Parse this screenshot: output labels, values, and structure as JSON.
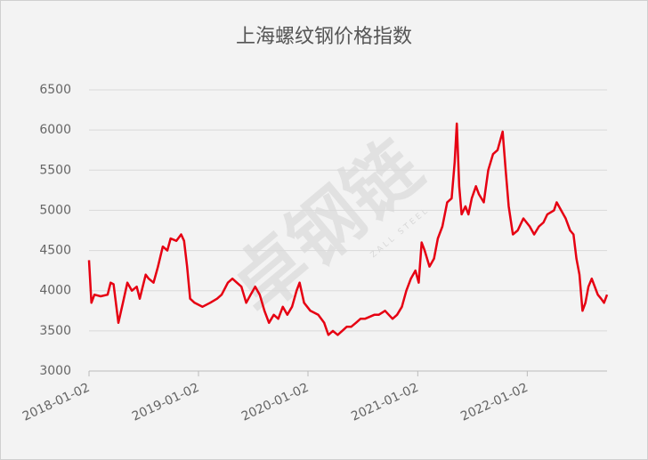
{
  "chart_data": {
    "type": "line",
    "title": "上海螺纹钢价格指数",
    "watermark": "卓钢链",
    "watermark_sub": "ZALL STEEL",
    "x": [
      "2018-01-02",
      "2018-01-10",
      "2018-01-20",
      "2018-02-10",
      "2018-03-05",
      "2018-03-15",
      "2018-03-25",
      "2018-04-10",
      "2018-04-25",
      "2018-05-10",
      "2018-05-25",
      "2018-06-10",
      "2018-06-20",
      "2018-07-10",
      "2018-07-20",
      "2018-08-05",
      "2018-08-20",
      "2018-09-05",
      "2018-09-20",
      "2018-10-01",
      "2018-10-20",
      "2018-11-05",
      "2018-11-15",
      "2018-11-25",
      "2018-12-05",
      "2018-12-20",
      "2019-01-15",
      "2019-02-10",
      "2019-03-05",
      "2019-03-20",
      "2019-04-10",
      "2019-04-25",
      "2019-05-10",
      "2019-05-25",
      "2019-06-10",
      "2019-06-25",
      "2019-07-10",
      "2019-07-25",
      "2019-08-10",
      "2019-08-25",
      "2019-09-10",
      "2019-09-25",
      "2019-10-10",
      "2019-10-25",
      "2019-11-10",
      "2019-11-25",
      "2019-12-05",
      "2019-12-20",
      "2020-01-10",
      "2020-02-05",
      "2020-02-25",
      "2020-03-10",
      "2020-03-25",
      "2020-04-10",
      "2020-04-25",
      "2020-05-10",
      "2020-05-25",
      "2020-06-10",
      "2020-06-25",
      "2020-07-10",
      "2020-08-10",
      "2020-08-25",
      "2020-09-15",
      "2020-10-10",
      "2020-10-25",
      "2020-11-10",
      "2020-11-25",
      "2020-12-10",
      "2020-12-25",
      "2021-01-05",
      "2021-01-15",
      "2021-01-25",
      "2021-02-10",
      "2021-02-25",
      "2021-03-10",
      "2021-03-25",
      "2021-04-10",
      "2021-04-25",
      "2021-05-05",
      "2021-05-12",
      "2021-05-20",
      "2021-05-28",
      "2021-06-10",
      "2021-06-20",
      "2021-07-01",
      "2021-07-15",
      "2021-07-25",
      "2021-08-10",
      "2021-08-25",
      "2021-09-10",
      "2021-09-25",
      "2021-10-12",
      "2021-10-22",
      "2021-11-01",
      "2021-11-15",
      "2021-12-01",
      "2021-12-20",
      "2022-01-10",
      "2022-01-25",
      "2022-02-10",
      "2022-02-25",
      "2022-03-10",
      "2022-04-01",
      "2022-04-10",
      "2022-04-25",
      "2022-05-10",
      "2022-05-25",
      "2022-06-05",
      "2022-06-15",
      "2022-06-25",
      "2022-07-05",
      "2022-07-15",
      "2022-07-25",
      "2022-08-05",
      "2022-08-15",
      "2022-08-25",
      "2022-09-05",
      "2022-09-15",
      "2022-09-25"
    ],
    "series": [
      {
        "color": "#e60012",
        "values": [
          4380,
          3850,
          3950,
          3930,
          3950,
          4100,
          4080,
          3600,
          3850,
          4100,
          4000,
          4050,
          3900,
          4200,
          4150,
          4100,
          4300,
          4550,
          4500,
          4650,
          4620,
          4700,
          4620,
          4300,
          3900,
          3850,
          3800,
          3850,
          3900,
          3950,
          4100,
          4150,
          4100,
          4050,
          3850,
          3950,
          4050,
          3950,
          3750,
          3600,
          3700,
          3650,
          3800,
          3700,
          3800,
          4000,
          4100,
          3850,
          3750,
          3700,
          3600,
          3450,
          3500,
          3450,
          3500,
          3550,
          3550,
          3600,
          3650,
          3650,
          3700,
          3700,
          3750,
          3650,
          3700,
          3800,
          4000,
          4150,
          4250,
          4100,
          4600,
          4500,
          4300,
          4400,
          4650,
          4800,
          5100,
          5150,
          5600,
          6080,
          5300,
          4950,
          5050,
          4950,
          5150,
          5300,
          5200,
          5100,
          5500,
          5700,
          5750,
          5980,
          5500,
          5050,
          4700,
          4750,
          4900,
          4800,
          4700,
          4800,
          4850,
          4950,
          5000,
          5100,
          5000,
          4900,
          4750,
          4700,
          4400,
          4200,
          3750,
          3850,
          4050,
          4150,
          4050,
          3950,
          3900,
          3850,
          3950
        ]
      }
    ],
    "xlim": [
      "2018-01-02",
      "2022-09-25"
    ],
    "xticks": [
      "2018-01-02",
      "2019-01-02",
      "2020-01-02",
      "2021-01-02",
      "2022-01-02"
    ],
    "ylim": [
      3000,
      6500
    ],
    "yticks": [
      3000,
      3500,
      4000,
      4500,
      5000,
      5500,
      6000,
      6500
    ],
    "grid": true
  }
}
